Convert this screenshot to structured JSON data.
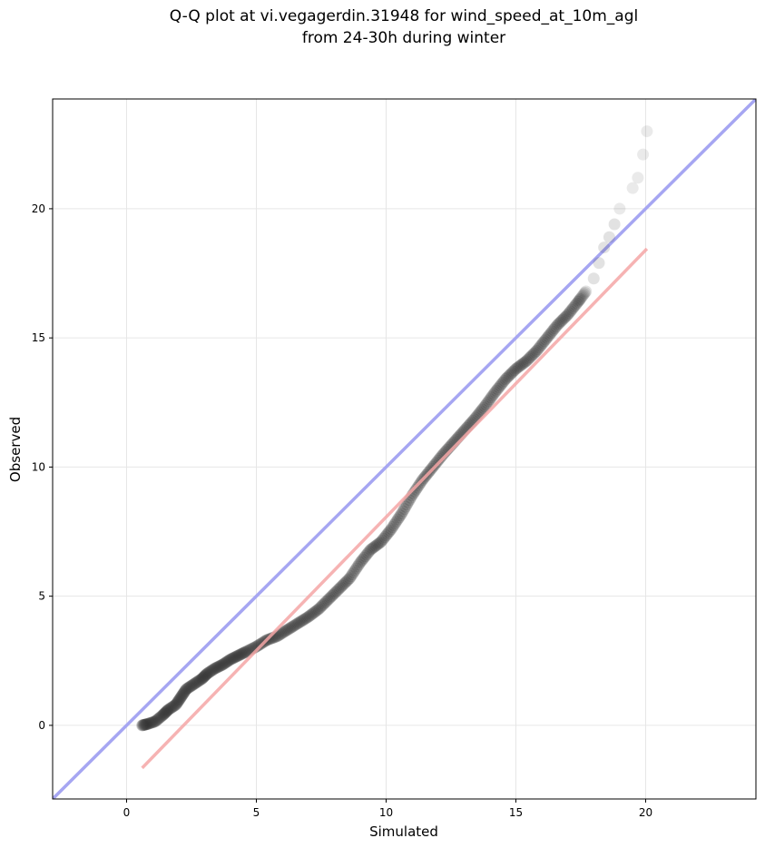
{
  "chart_data": {
    "type": "scatter",
    "title": "Q-Q plot at vi.vegagerdin.31948 for wind_speed_at_10m_agl",
    "subtitle": "from 24-30h during winter",
    "xlabel": "Simulated",
    "ylabel": "Observed",
    "xlim": [
      -2.85,
      24.25
    ],
    "ylim": [
      -2.85,
      24.25
    ],
    "xticks": [
      0,
      5,
      10,
      15,
      20
    ],
    "yticks": [
      0,
      5,
      10,
      15,
      20
    ],
    "grid": true,
    "identity_line": {
      "from": [
        -2.85,
        -2.85
      ],
      "to": [
        24.25,
        24.25
      ],
      "color": "#a6a6f2"
    },
    "fit_line": {
      "from": [
        0.6,
        -1.65
      ],
      "to": [
        20.05,
        18.45
      ],
      "color": "#f4a6a6"
    },
    "points": {
      "color": "#333333",
      "quantiles": [
        [
          0.6,
          0.0
        ],
        [
          0.8,
          0.05
        ],
        [
          1.1,
          0.15
        ],
        [
          1.4,
          0.4
        ],
        [
          1.6,
          0.6
        ],
        [
          1.9,
          0.8
        ],
        [
          2.1,
          1.1
        ],
        [
          2.3,
          1.4
        ],
        [
          2.6,
          1.6
        ],
        [
          2.9,
          1.8
        ],
        [
          3.1,
          2.0
        ],
        [
          3.4,
          2.2
        ],
        [
          3.7,
          2.35
        ],
        [
          4.0,
          2.55
        ],
        [
          4.3,
          2.7
        ],
        [
          4.6,
          2.85
        ],
        [
          5.0,
          3.05
        ],
        [
          5.4,
          3.3
        ],
        [
          5.8,
          3.45
        ],
        [
          6.2,
          3.7
        ],
        [
          6.6,
          3.95
        ],
        [
          7.0,
          4.2
        ],
        [
          7.4,
          4.5
        ],
        [
          7.8,
          4.9
        ],
        [
          8.2,
          5.3
        ],
        [
          8.6,
          5.7
        ],
        [
          9.0,
          6.3
        ],
        [
          9.4,
          6.8
        ],
        [
          9.8,
          7.1
        ],
        [
          10.2,
          7.6
        ],
        [
          10.6,
          8.2
        ],
        [
          11.0,
          8.9
        ],
        [
          11.4,
          9.5
        ],
        [
          11.8,
          10.0
        ],
        [
          12.2,
          10.5
        ],
        [
          12.6,
          10.95
        ],
        [
          13.0,
          11.4
        ],
        [
          13.4,
          11.85
        ],
        [
          13.8,
          12.35
        ],
        [
          14.2,
          12.9
        ],
        [
          14.6,
          13.4
        ],
        [
          15.0,
          13.8
        ],
        [
          15.4,
          14.1
        ],
        [
          15.8,
          14.5
        ],
        [
          16.2,
          15.0
        ],
        [
          16.6,
          15.5
        ],
        [
          17.0,
          15.9
        ],
        [
          17.4,
          16.4
        ],
        [
          17.7,
          16.8
        ],
        [
          18.0,
          17.3
        ],
        [
          18.2,
          17.9
        ],
        [
          18.4,
          18.5
        ],
        [
          18.6,
          18.9
        ],
        [
          18.8,
          19.4
        ],
        [
          19.0,
          20.0
        ],
        [
          19.5,
          20.8
        ],
        [
          19.7,
          21.2
        ],
        [
          19.9,
          22.1
        ],
        [
          20.05,
          23.0
        ]
      ]
    }
  }
}
